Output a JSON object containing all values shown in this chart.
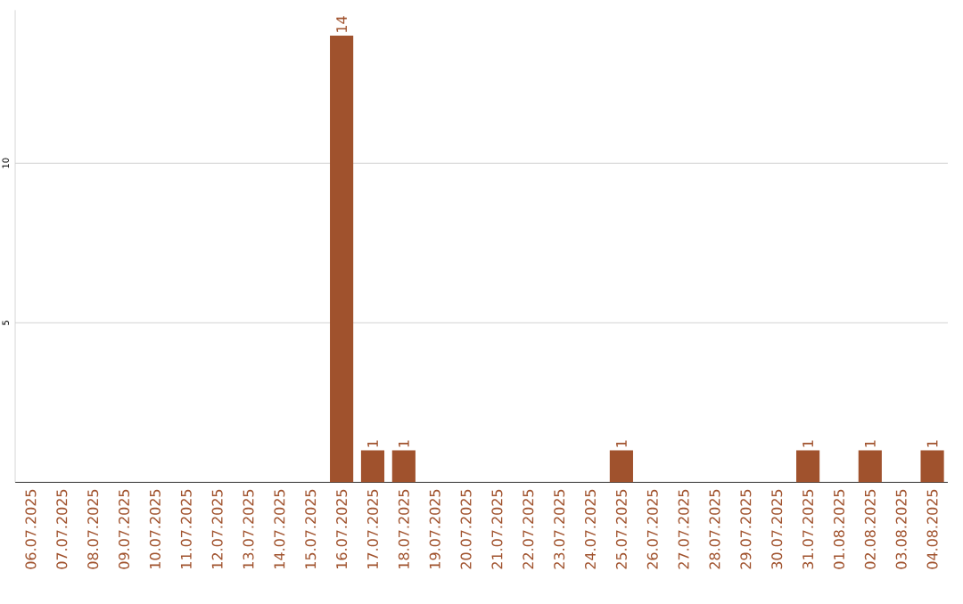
{
  "chart_data": {
    "type": "bar",
    "categories": [
      "06.07.2025",
      "07.07.2025",
      "08.07.2025",
      "09.07.2025",
      "10.07.2025",
      "11.07.2025",
      "12.07.2025",
      "13.07.2025",
      "14.07.2025",
      "15.07.2025",
      "16.07.2025",
      "17.07.2025",
      "18.07.2025",
      "19.07.2025",
      "20.07.2025",
      "21.07.2025",
      "22.07.2025",
      "23.07.2025",
      "24.07.2025",
      "25.07.2025",
      "26.07.2025",
      "27.07.2025",
      "28.07.2025",
      "29.07.2025",
      "30.07.2025",
      "31.07.2025",
      "01.08.2025",
      "02.08.2025",
      "03.08.2025",
      "04.08.2025"
    ],
    "values": [
      0,
      0,
      0,
      0,
      0,
      0,
      0,
      0,
      0,
      0,
      14,
      1,
      1,
      0,
      0,
      0,
      0,
      0,
      0,
      1,
      0,
      0,
      0,
      0,
      0,
      1,
      0,
      1,
      0,
      1
    ],
    "value_labels": [
      null,
      null,
      null,
      null,
      null,
      null,
      null,
      null,
      null,
      null,
      "14",
      "1",
      "1",
      null,
      null,
      null,
      null,
      null,
      null,
      "1",
      null,
      null,
      null,
      null,
      null,
      "1",
      null,
      "1",
      null,
      "1"
    ],
    "color": "#a0522d",
    "ylim": [
      0,
      14.8
    ],
    "yticks": [
      5,
      10
    ],
    "grid": "y"
  }
}
